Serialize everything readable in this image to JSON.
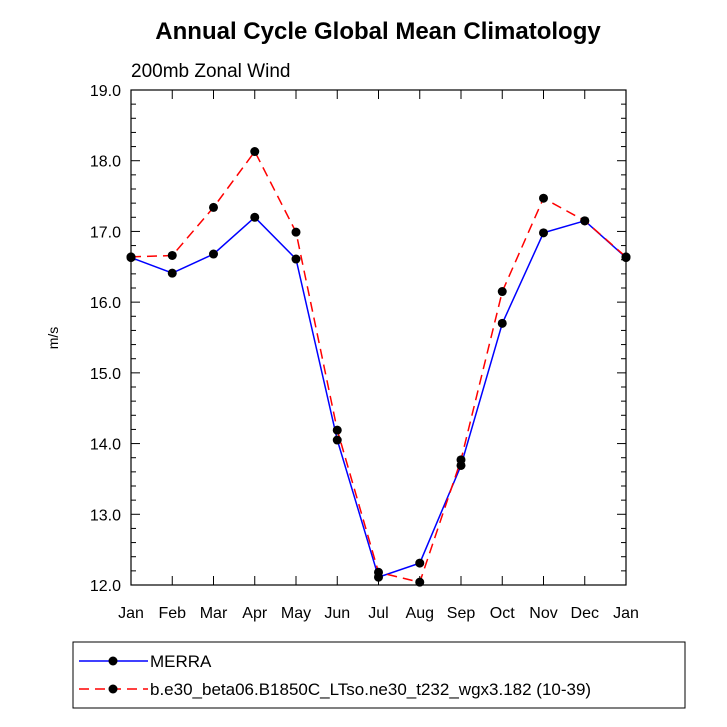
{
  "chart_data": {
    "type": "line",
    "title": "Annual Cycle Global Mean Climatology",
    "subtitle": "200mb Zonal Wind",
    "xlabel": "",
    "ylabel": "m/s",
    "categories": [
      "Jan",
      "Feb",
      "Mar",
      "Apr",
      "May",
      "Jun",
      "Jul",
      "Aug",
      "Sep",
      "Oct",
      "Nov",
      "Dec",
      "Jan"
    ],
    "ylim": [
      12.0,
      19.0
    ],
    "yticks": [
      "12.0",
      "13.0",
      "14.0",
      "15.0",
      "16.0",
      "17.0",
      "18.0",
      "19.0"
    ],
    "grid": false,
    "legend_position": "bottom",
    "series": [
      {
        "name": "MERRA",
        "color": "#0000ff",
        "dash": "solid",
        "marker": "filled-circle",
        "values": [
          16.63,
          16.41,
          16.68,
          17.2,
          16.61,
          14.05,
          12.11,
          12.31,
          13.69,
          15.7,
          16.98,
          17.15,
          16.63
        ]
      },
      {
        "name": "b.e30_beta06.B1850C_LTso.ne30_t232_wgx3.182 (10-39)",
        "color": "#ff0000",
        "dash": "dashed",
        "marker": "filled-circle",
        "values": [
          16.64,
          16.66,
          17.34,
          18.13,
          16.99,
          14.19,
          12.18,
          12.04,
          13.77,
          16.15,
          17.47,
          17.15,
          16.64
        ]
      }
    ]
  }
}
